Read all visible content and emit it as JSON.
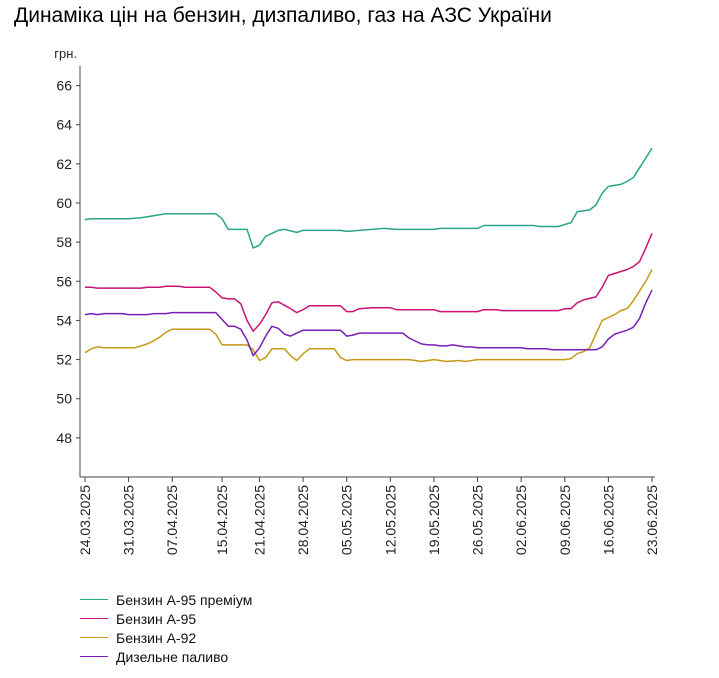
{
  "title": "Динаміка цін на бензин, дизпаливо, газ на АЗС України",
  "chart_data": {
    "type": "line",
    "title": "Динаміка цін на бензин, дизпаливо, газ на АЗС України",
    "ylabel": "грн.",
    "xlabel": "",
    "ylim": [
      46,
      67
    ],
    "yticks": [
      48,
      50,
      52,
      54,
      56,
      58,
      60,
      62,
      64,
      66
    ],
    "xlim": [
      "2025-03-24",
      "2025-06-23"
    ],
    "xticks": [
      "24.03.2025",
      "31.03.2025",
      "07.04.2025",
      "15.04.2025",
      "21.04.2025",
      "28.04.2025",
      "05.05.2025",
      "12.05.2025",
      "19.05.2025",
      "26.05.2025",
      "02.06.2025",
      "09.06.2025",
      "16.06.2025",
      "23.06.2025"
    ],
    "grid": false,
    "legend_position": "bottom-left",
    "series": [
      {
        "name": "Бензин А-95 преміум",
        "color": "#2aa58a",
        "points": [
          [
            "2025-03-24",
            59.15
          ],
          [
            "2025-03-25",
            59.2
          ],
          [
            "2025-03-31",
            59.2
          ],
          [
            "2025-04-02",
            59.25
          ],
          [
            "2025-04-04",
            59.35
          ],
          [
            "2025-04-06",
            59.45
          ],
          [
            "2025-04-14",
            59.45
          ],
          [
            "2025-04-15",
            59.2
          ],
          [
            "2025-04-16",
            58.65
          ],
          [
            "2025-04-19",
            58.65
          ],
          [
            "2025-04-20",
            57.7
          ],
          [
            "2025-04-21",
            57.85
          ],
          [
            "2025-04-22",
            58.3
          ],
          [
            "2025-04-24",
            58.6
          ],
          [
            "2025-04-25",
            58.65
          ],
          [
            "2025-04-27",
            58.5
          ],
          [
            "2025-04-28",
            58.6
          ],
          [
            "2025-05-04",
            58.6
          ],
          [
            "2025-05-05",
            58.55
          ],
          [
            "2025-05-07",
            58.6
          ],
          [
            "2025-05-09",
            58.65
          ],
          [
            "2025-05-11",
            58.7
          ],
          [
            "2025-05-13",
            58.65
          ],
          [
            "2025-05-19",
            58.65
          ],
          [
            "2025-05-20",
            58.7
          ],
          [
            "2025-05-26",
            58.7
          ],
          [
            "2025-05-27",
            58.85
          ],
          [
            "2025-06-04",
            58.85
          ],
          [
            "2025-06-05",
            58.8
          ],
          [
            "2025-06-08",
            58.8
          ],
          [
            "2025-06-09",
            58.9
          ],
          [
            "2025-06-10",
            59.0
          ],
          [
            "2025-06-11",
            59.55
          ],
          [
            "2025-06-13",
            59.65
          ],
          [
            "2025-06-14",
            59.9
          ],
          [
            "2025-06-15",
            60.5
          ],
          [
            "2025-06-16",
            60.85
          ],
          [
            "2025-06-17",
            60.9
          ],
          [
            "2025-06-18",
            60.95
          ],
          [
            "2025-06-19",
            61.1
          ],
          [
            "2025-06-20",
            61.3
          ],
          [
            "2025-06-21",
            61.8
          ],
          [
            "2025-06-22",
            62.3
          ],
          [
            "2025-06-23",
            62.8
          ]
        ]
      },
      {
        "name": "Бензин А-95",
        "color": "#cc1177",
        "points": [
          [
            "2025-03-24",
            55.7
          ],
          [
            "2025-03-25",
            55.7
          ],
          [
            "2025-03-26",
            55.65
          ],
          [
            "2025-04-02",
            55.65
          ],
          [
            "2025-04-03",
            55.7
          ],
          [
            "2025-04-05",
            55.7
          ],
          [
            "2025-04-06",
            55.75
          ],
          [
            "2025-04-08",
            55.75
          ],
          [
            "2025-04-09",
            55.7
          ],
          [
            "2025-04-13",
            55.7
          ],
          [
            "2025-04-14",
            55.45
          ],
          [
            "2025-04-15",
            55.15
          ],
          [
            "2025-04-16",
            55.1
          ],
          [
            "2025-04-17",
            55.1
          ],
          [
            "2025-04-18",
            54.85
          ],
          [
            "2025-04-19",
            54.0
          ],
          [
            "2025-04-20",
            53.45
          ],
          [
            "2025-04-21",
            53.8
          ],
          [
            "2025-04-22",
            54.3
          ],
          [
            "2025-04-23",
            54.9
          ],
          [
            "2025-04-24",
            54.95
          ],
          [
            "2025-04-26",
            54.6
          ],
          [
            "2025-04-27",
            54.4
          ],
          [
            "2025-04-28",
            54.55
          ],
          [
            "2025-04-29",
            54.75
          ],
          [
            "2025-05-04",
            54.75
          ],
          [
            "2025-05-05",
            54.45
          ],
          [
            "2025-05-06",
            54.45
          ],
          [
            "2025-05-07",
            54.6
          ],
          [
            "2025-05-09",
            54.65
          ],
          [
            "2025-05-12",
            54.65
          ],
          [
            "2025-05-13",
            54.55
          ],
          [
            "2025-05-19",
            54.55
          ],
          [
            "2025-05-20",
            54.45
          ],
          [
            "2025-05-26",
            54.45
          ],
          [
            "2025-05-27",
            54.55
          ],
          [
            "2025-05-29",
            54.55
          ],
          [
            "2025-05-30",
            54.5
          ],
          [
            "2025-06-08",
            54.5
          ],
          [
            "2025-06-09",
            54.6
          ],
          [
            "2025-06-10",
            54.6
          ],
          [
            "2025-06-11",
            54.9
          ],
          [
            "2025-06-12",
            55.05
          ],
          [
            "2025-06-14",
            55.2
          ],
          [
            "2025-06-15",
            55.7
          ],
          [
            "2025-06-16",
            56.3
          ],
          [
            "2025-06-17",
            56.4
          ],
          [
            "2025-06-18",
            56.5
          ],
          [
            "2025-06-19",
            56.6
          ],
          [
            "2025-06-20",
            56.75
          ],
          [
            "2025-06-21",
            57.0
          ],
          [
            "2025-06-22",
            57.7
          ],
          [
            "2025-06-23",
            58.45
          ]
        ]
      },
      {
        "name": "Бензин А-92",
        "color": "#c49a17",
        "points": [
          [
            "2025-03-24",
            52.35
          ],
          [
            "2025-03-25",
            52.55
          ],
          [
            "2025-03-26",
            52.65
          ],
          [
            "2025-03-27",
            52.6
          ],
          [
            "2025-04-01",
            52.6
          ],
          [
            "2025-04-02",
            52.7
          ],
          [
            "2025-04-03",
            52.8
          ],
          [
            "2025-04-04",
            52.95
          ],
          [
            "2025-04-05",
            53.15
          ],
          [
            "2025-04-06",
            53.4
          ],
          [
            "2025-04-07",
            53.55
          ],
          [
            "2025-04-13",
            53.55
          ],
          [
            "2025-04-14",
            53.3
          ],
          [
            "2025-04-15",
            52.75
          ],
          [
            "2025-04-19",
            52.75
          ],
          [
            "2025-04-20",
            52.5
          ],
          [
            "2025-04-21",
            51.95
          ],
          [
            "2025-04-22",
            52.1
          ],
          [
            "2025-04-23",
            52.55
          ],
          [
            "2025-04-25",
            52.55
          ],
          [
            "2025-04-26",
            52.2
          ],
          [
            "2025-04-27",
            51.95
          ],
          [
            "2025-04-28",
            52.3
          ],
          [
            "2025-04-29",
            52.55
          ],
          [
            "2025-05-03",
            52.55
          ],
          [
            "2025-05-04",
            52.1
          ],
          [
            "2025-05-05",
            51.95
          ],
          [
            "2025-05-06",
            52.0
          ],
          [
            "2025-05-15",
            52.0
          ],
          [
            "2025-05-16",
            51.95
          ],
          [
            "2025-05-17",
            51.9
          ],
          [
            "2025-05-18",
            51.95
          ],
          [
            "2025-05-19",
            52.0
          ],
          [
            "2025-05-20",
            51.95
          ],
          [
            "2025-05-21",
            51.9
          ],
          [
            "2025-05-23",
            51.95
          ],
          [
            "2025-05-24",
            51.9
          ],
          [
            "2025-05-26",
            52.0
          ],
          [
            "2025-06-09",
            52.0
          ],
          [
            "2025-06-10",
            52.05
          ],
          [
            "2025-06-11",
            52.3
          ],
          [
            "2025-06-12",
            52.4
          ],
          [
            "2025-06-13",
            52.6
          ],
          [
            "2025-06-14",
            53.3
          ],
          [
            "2025-06-15",
            54.0
          ],
          [
            "2025-06-16",
            54.15
          ],
          [
            "2025-06-17",
            54.3
          ],
          [
            "2025-06-18",
            54.5
          ],
          [
            "2025-06-19",
            54.6
          ],
          [
            "2025-06-20",
            55.0
          ],
          [
            "2025-06-21",
            55.5
          ],
          [
            "2025-06-22",
            56.0
          ],
          [
            "2025-06-23",
            56.6
          ]
        ]
      },
      {
        "name": "Дизельне паливо",
        "color": "#7a1fb8",
        "points": [
          [
            "2025-03-24",
            54.3
          ],
          [
            "2025-03-25",
            54.35
          ],
          [
            "2025-03-26",
            54.3
          ],
          [
            "2025-03-27",
            54.35
          ],
          [
            "2025-03-30",
            54.35
          ],
          [
            "2025-03-31",
            54.3
          ],
          [
            "2025-04-03",
            54.3
          ],
          [
            "2025-04-04",
            54.35
          ],
          [
            "2025-04-06",
            54.35
          ],
          [
            "2025-04-07",
            54.4
          ],
          [
            "2025-04-14",
            54.4
          ],
          [
            "2025-04-15",
            54.05
          ],
          [
            "2025-04-16",
            53.7
          ],
          [
            "2025-04-17",
            53.7
          ],
          [
            "2025-04-18",
            53.55
          ],
          [
            "2025-04-19",
            53.0
          ],
          [
            "2025-04-20",
            52.2
          ],
          [
            "2025-04-21",
            52.6
          ],
          [
            "2025-04-22",
            53.2
          ],
          [
            "2025-04-23",
            53.7
          ],
          [
            "2025-04-24",
            53.6
          ],
          [
            "2025-04-25",
            53.3
          ],
          [
            "2025-04-26",
            53.2
          ],
          [
            "2025-04-27",
            53.35
          ],
          [
            "2025-04-28",
            53.5
          ],
          [
            "2025-05-04",
            53.5
          ],
          [
            "2025-05-05",
            53.2
          ],
          [
            "2025-05-06",
            53.25
          ],
          [
            "2025-05-07",
            53.35
          ],
          [
            "2025-05-14",
            53.35
          ],
          [
            "2025-05-15",
            53.1
          ],
          [
            "2025-05-16",
            52.95
          ],
          [
            "2025-05-17",
            52.8
          ],
          [
            "2025-05-18",
            52.75
          ],
          [
            "2025-05-19",
            52.75
          ],
          [
            "2025-05-20",
            52.7
          ],
          [
            "2025-05-21",
            52.7
          ],
          [
            "2025-05-22",
            52.75
          ],
          [
            "2025-05-23",
            52.7
          ],
          [
            "2025-05-24",
            52.65
          ],
          [
            "2025-05-25",
            52.65
          ],
          [
            "2025-05-26",
            52.6
          ],
          [
            "2025-06-02",
            52.6
          ],
          [
            "2025-06-03",
            52.55
          ],
          [
            "2025-06-06",
            52.55
          ],
          [
            "2025-06-07",
            52.5
          ],
          [
            "2025-06-14",
            52.5
          ],
          [
            "2025-06-15",
            52.65
          ],
          [
            "2025-06-16",
            53.05
          ],
          [
            "2025-06-17",
            53.3
          ],
          [
            "2025-06-18",
            53.4
          ],
          [
            "2025-06-19",
            53.5
          ],
          [
            "2025-06-20",
            53.65
          ],
          [
            "2025-06-21",
            54.1
          ],
          [
            "2025-06-22",
            54.9
          ],
          [
            "2025-06-23",
            55.55
          ]
        ]
      }
    ]
  }
}
